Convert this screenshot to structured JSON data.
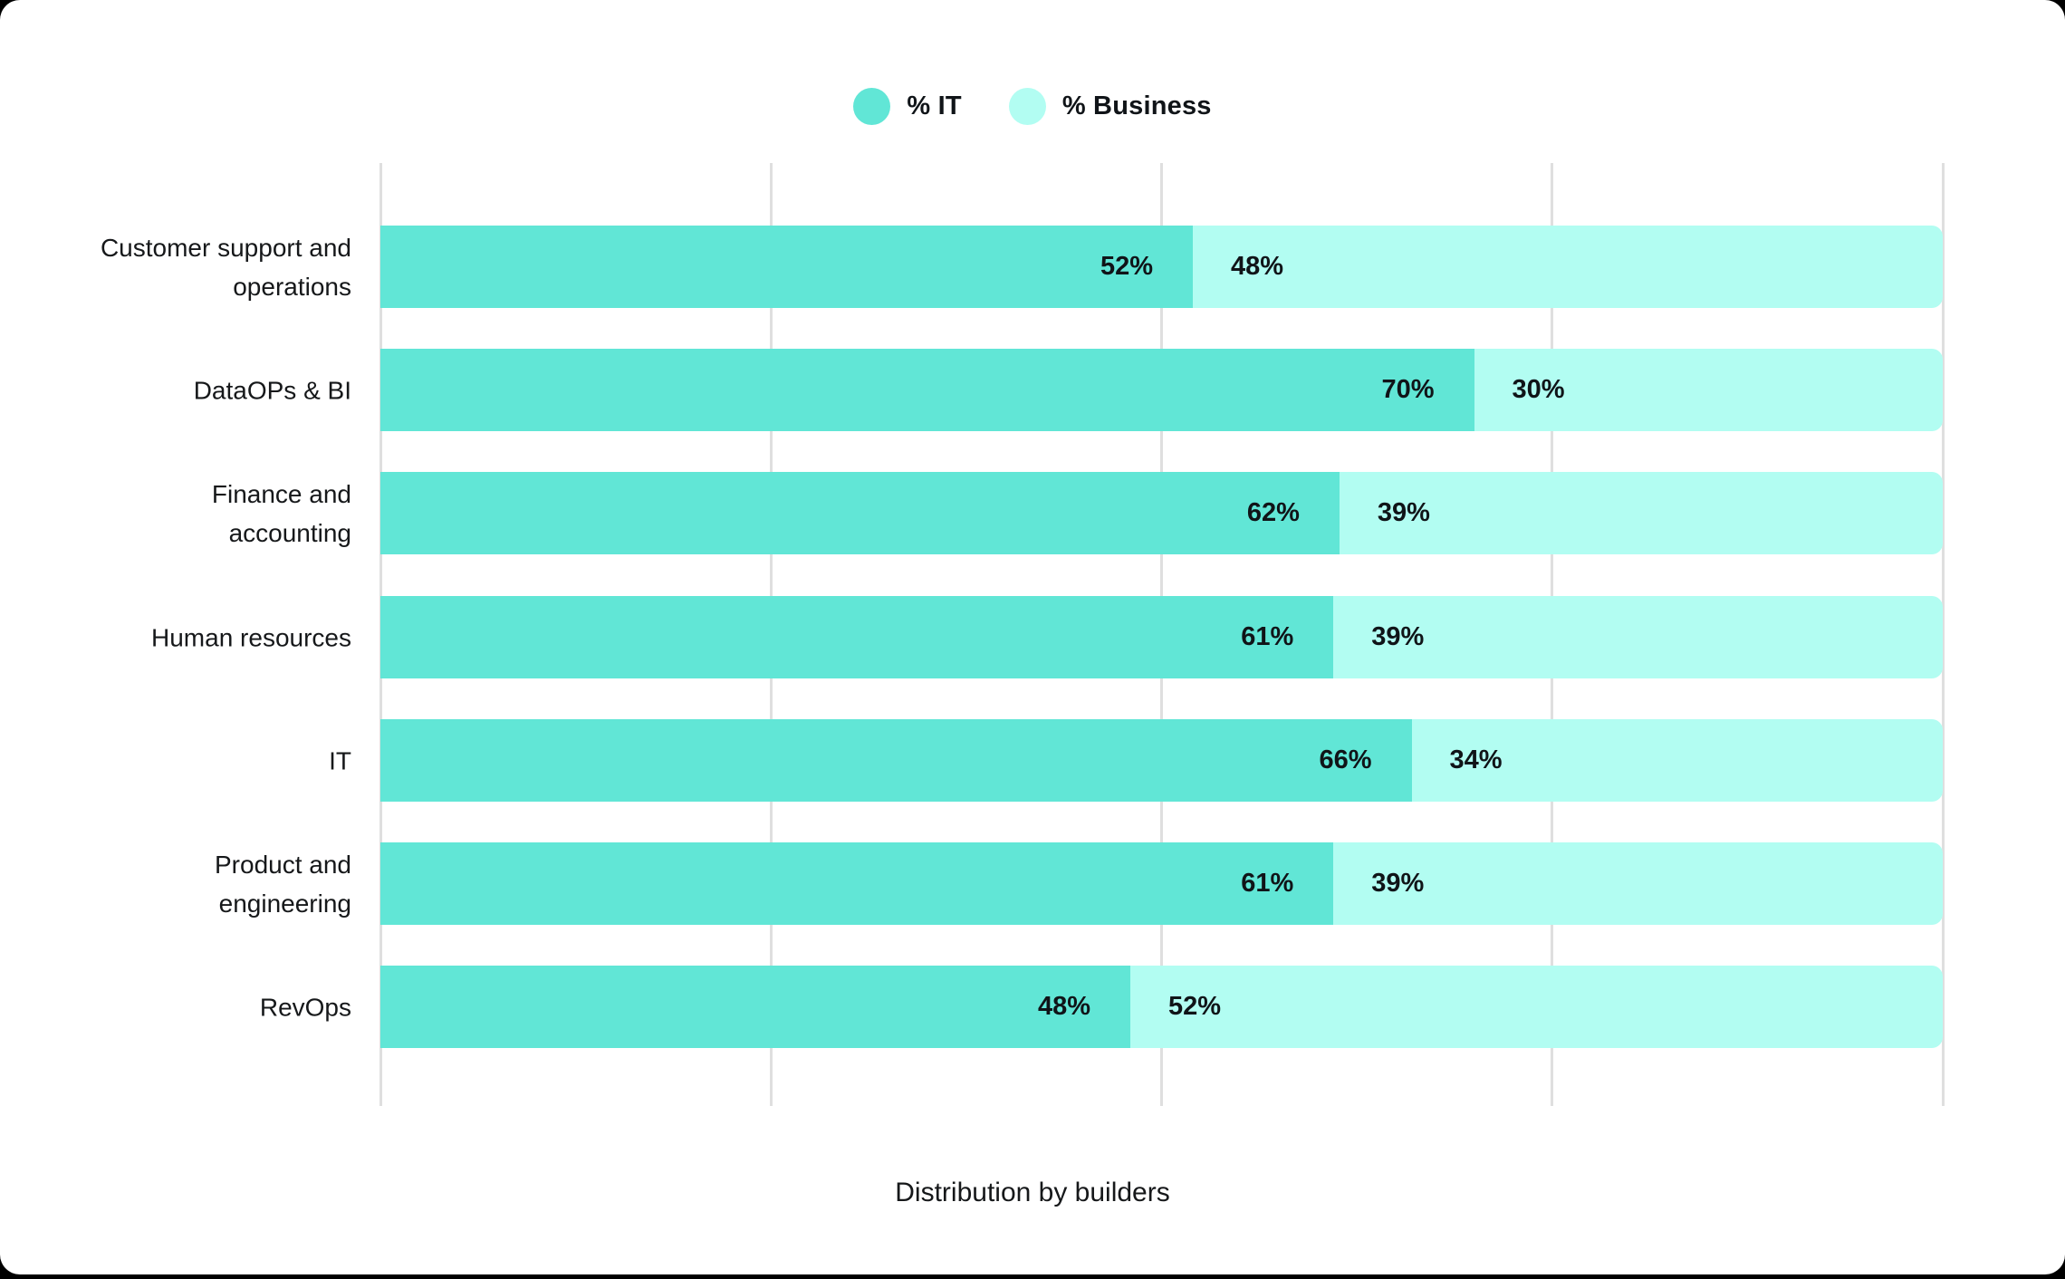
{
  "page": {
    "background_color": "#000000",
    "card_background_color": "#ffffff"
  },
  "title": "Distribution by builders",
  "chart_data": {
    "type": "bar",
    "orientation": "horizontal",
    "stacked": true,
    "title": "Distribution by builders",
    "xlabel": "",
    "ylabel": "",
    "xlim": [
      0,
      100
    ],
    "legend_position": "top-center",
    "grid": {
      "vertical_ticks_pct": [
        0,
        25,
        50,
        75,
        100
      ],
      "color": "#dfdfdf"
    },
    "categories": [
      "Customer support and operations",
      "DataOPs & BI",
      "Finance and accounting",
      "Human resources",
      "IT",
      "Product and engineering",
      "RevOps"
    ],
    "label_lines": [
      [
        "Customer support and",
        "operations"
      ],
      [
        "DataOPs & BI"
      ],
      [
        "Finance and",
        "accounting"
      ],
      [
        "Human resources"
      ],
      [
        "IT"
      ],
      [
        "Product and",
        "engineering"
      ],
      [
        "RevOps"
      ]
    ],
    "series": [
      {
        "name": "% IT",
        "color": "#61e6d6",
        "values": [
          52,
          70,
          62,
          61,
          66,
          61,
          48
        ]
      },
      {
        "name": "% Business",
        "color": "#b2fdf2",
        "values": [
          48,
          30,
          39,
          39,
          34,
          39,
          52
        ]
      }
    ],
    "value_label_suffix": "%",
    "value_label_color": "#101418"
  }
}
